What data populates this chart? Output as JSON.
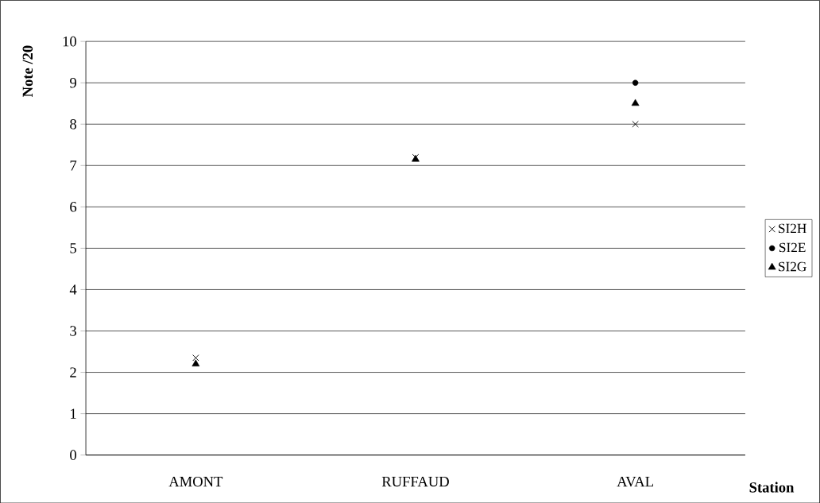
{
  "chart_data": {
    "type": "scatter",
    "xlabel": "Station",
    "ylabel": "Note /20",
    "categories": [
      "AMONT",
      "RUFFAUD",
      "AVAL"
    ],
    "series": [
      {
        "name": "SI2H",
        "color": "#000000",
        "marker": "cross",
        "values": [
          2.35,
          7.2,
          8.0
        ]
      },
      {
        "name": "SI2E",
        "color": "#000000",
        "marker": "circle",
        "values": [
          null,
          null,
          9.0
        ]
      },
      {
        "name": "SI2G",
        "color": "#000000",
        "marker": "triangle",
        "values": [
          2.2,
          7.15,
          8.5
        ]
      }
    ],
    "ylim": [
      0,
      10
    ],
    "yticks": [
      0,
      1,
      2,
      3,
      4,
      5,
      6,
      7,
      8,
      9,
      10
    ],
    "grid": "y",
    "legend": "right"
  }
}
